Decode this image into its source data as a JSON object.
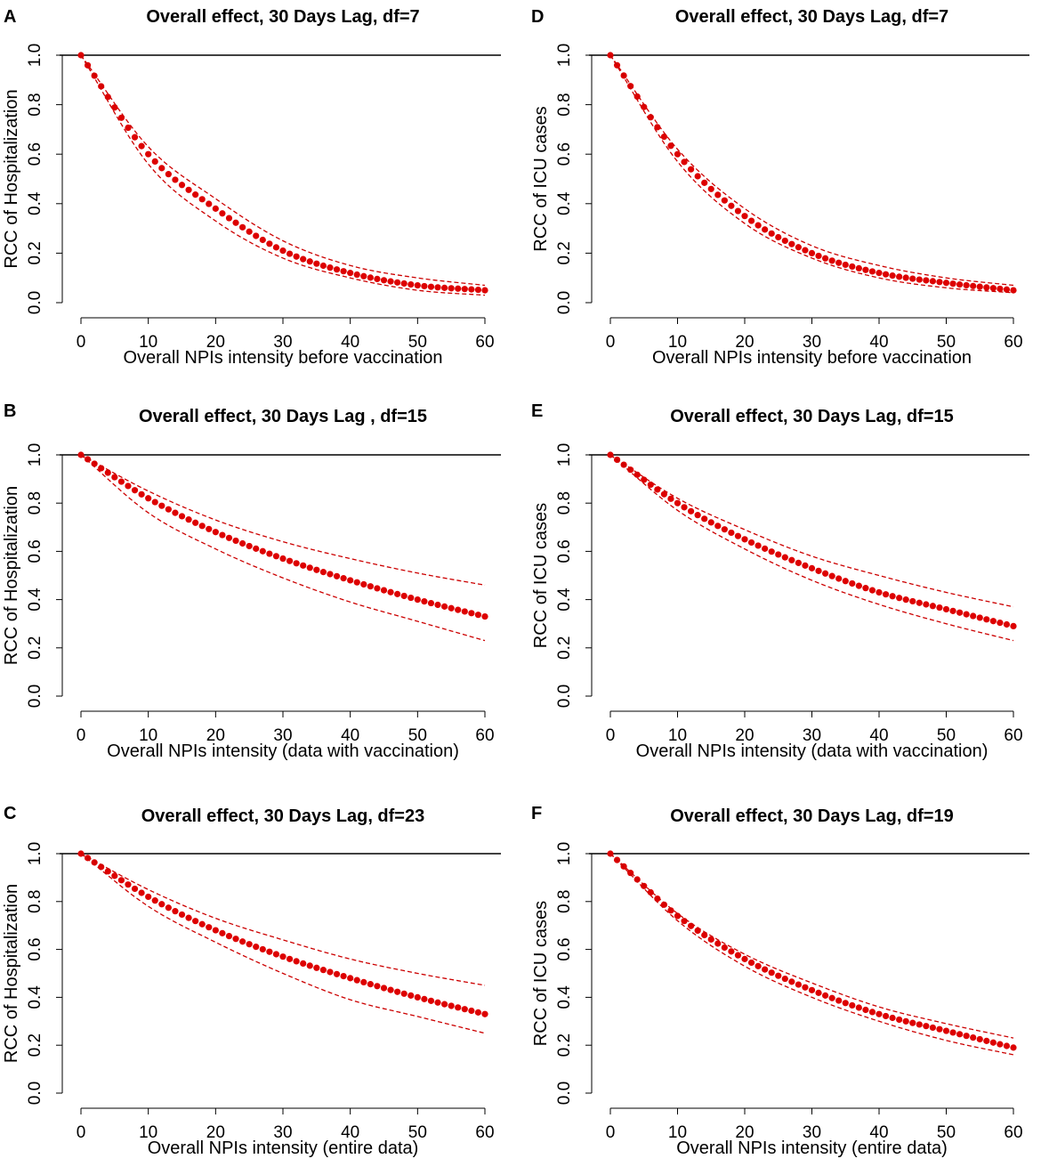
{
  "chart_data": [
    {
      "panel": "A",
      "type": "line",
      "title": "Overall effect, 30 Days Lag, df=7",
      "xlabel": "Overall NPIs intensity before vaccination",
      "ylabel": "RCC of Hospitalization",
      "xlim": [
        0,
        60
      ],
      "ylim": [
        0,
        1
      ],
      "xticks": [
        0,
        10,
        20,
        30,
        40,
        50,
        60
      ],
      "yticks": [
        0.0,
        0.2,
        0.4,
        0.6,
        0.8,
        1.0
      ],
      "ytick_labels": [
        "0.0",
        "0.2",
        "0.4",
        "0.6",
        "0.8",
        "1.0"
      ],
      "reference_line": 1.0,
      "x": [
        0,
        10,
        20,
        30,
        40,
        50,
        60
      ],
      "series": [
        {
          "name": "estimate",
          "style": "points",
          "values": [
            1.0,
            0.6,
            0.38,
            0.21,
            0.12,
            0.07,
            0.05
          ]
        },
        {
          "name": "upper",
          "style": "dashed",
          "values": [
            1.0,
            0.63,
            0.42,
            0.25,
            0.15,
            0.1,
            0.07
          ]
        },
        {
          "name": "lower",
          "style": "dashed",
          "values": [
            1.0,
            0.56,
            0.33,
            0.18,
            0.1,
            0.05,
            0.03
          ]
        }
      ]
    },
    {
      "panel": "B",
      "type": "line",
      "title": "Overall effect, 30 Days Lag , df=15",
      "xlabel": "Overall NPIs intensity (data with vaccination)",
      "ylabel": "RCC of Hospitalization",
      "xlim": [
        0,
        60
      ],
      "ylim": [
        0,
        1
      ],
      "xticks": [
        0,
        10,
        20,
        30,
        40,
        50,
        60
      ],
      "yticks": [
        0.0,
        0.2,
        0.4,
        0.6,
        0.8,
        1.0
      ],
      "ytick_labels": [
        "0.0",
        "0.2",
        "0.4",
        "0.6",
        "0.8",
        "1.0"
      ],
      "reference_line": 1.0,
      "x": [
        0,
        10,
        20,
        30,
        40,
        50,
        60
      ],
      "series": [
        {
          "name": "estimate",
          "style": "points",
          "values": [
            1.0,
            0.82,
            0.68,
            0.57,
            0.48,
            0.4,
            0.33
          ]
        },
        {
          "name": "upper",
          "style": "dashed",
          "values": [
            1.0,
            0.85,
            0.73,
            0.64,
            0.57,
            0.51,
            0.46
          ]
        },
        {
          "name": "lower",
          "style": "dashed",
          "values": [
            1.0,
            0.76,
            0.61,
            0.49,
            0.39,
            0.31,
            0.23
          ]
        }
      ]
    },
    {
      "panel": "C",
      "type": "line",
      "title": "Overall effect, 30 Days Lag, df=23",
      "xlabel": "Overall NPIs intensity (entire data)",
      "ylabel": "RCC of Hospitalization",
      "xlim": [
        0,
        60
      ],
      "ylim": [
        0,
        1
      ],
      "xticks": [
        0,
        10,
        20,
        30,
        40,
        50,
        60
      ],
      "yticks": [
        0.0,
        0.2,
        0.4,
        0.6,
        0.8,
        1.0
      ],
      "ytick_labels": [
        "0.0",
        "0.2",
        "0.4",
        "0.6",
        "0.8",
        "1.0"
      ],
      "reference_line": 1.0,
      "x": [
        0,
        10,
        20,
        30,
        40,
        50,
        60
      ],
      "series": [
        {
          "name": "estimate",
          "style": "points",
          "values": [
            1.0,
            0.82,
            0.68,
            0.57,
            0.48,
            0.4,
            0.33
          ]
        },
        {
          "name": "upper",
          "style": "dashed",
          "values": [
            1.0,
            0.85,
            0.73,
            0.64,
            0.56,
            0.5,
            0.45
          ]
        },
        {
          "name": "lower",
          "style": "dashed",
          "values": [
            1.0,
            0.78,
            0.63,
            0.5,
            0.39,
            0.32,
            0.25
          ]
        }
      ]
    },
    {
      "panel": "D",
      "type": "line",
      "title": "Overall effect, 30 Days Lag, df=7",
      "xlabel": "Overall NPIs intensity before vaccination",
      "ylabel": "RCC of ICU cases",
      "xlim": [
        0,
        60
      ],
      "ylim": [
        0,
        1
      ],
      "xticks": [
        0,
        10,
        20,
        30,
        40,
        50,
        60
      ],
      "yticks": [
        0.0,
        0.2,
        0.4,
        0.6,
        0.8,
        1.0
      ],
      "ytick_labels": [
        "0.0",
        "0.2",
        "0.4",
        "0.6",
        "0.8",
        "1.0"
      ],
      "reference_line": 1.0,
      "x": [
        0,
        10,
        20,
        30,
        40,
        50,
        60
      ],
      "series": [
        {
          "name": "estimate",
          "style": "points",
          "values": [
            1.0,
            0.6,
            0.35,
            0.2,
            0.12,
            0.08,
            0.05
          ]
        },
        {
          "name": "upper",
          "style": "dashed",
          "values": [
            1.0,
            0.62,
            0.38,
            0.23,
            0.15,
            0.1,
            0.07
          ]
        },
        {
          "name": "lower",
          "style": "dashed",
          "values": [
            1.0,
            0.57,
            0.32,
            0.18,
            0.1,
            0.06,
            0.04
          ]
        }
      ]
    },
    {
      "panel": "E",
      "type": "line",
      "title": "Overall effect, 30 Days Lag, df=15",
      "xlabel": "Overall NPIs intensity (data with vaccination)",
      "ylabel": "RCC of ICU cases",
      "xlim": [
        0,
        60
      ],
      "ylim": [
        0,
        1
      ],
      "xticks": [
        0,
        10,
        20,
        30,
        40,
        50,
        60
      ],
      "yticks": [
        0.0,
        0.2,
        0.4,
        0.6,
        0.8,
        1.0
      ],
      "ytick_labels": [
        "0.0",
        "0.2",
        "0.4",
        "0.6",
        "0.8",
        "1.0"
      ],
      "reference_line": 1.0,
      "x": [
        0,
        10,
        20,
        30,
        40,
        50,
        60
      ],
      "series": [
        {
          "name": "estimate",
          "style": "points",
          "values": [
            1.0,
            0.8,
            0.65,
            0.53,
            0.43,
            0.36,
            0.29
          ]
        },
        {
          "name": "upper",
          "style": "dashed",
          "values": [
            1.0,
            0.82,
            0.69,
            0.58,
            0.5,
            0.43,
            0.37
          ]
        },
        {
          "name": "lower",
          "style": "dashed",
          "values": [
            1.0,
            0.77,
            0.61,
            0.48,
            0.38,
            0.3,
            0.23
          ]
        }
      ]
    },
    {
      "panel": "F",
      "type": "line",
      "title": "Overall effect, 30 Days Lag, df=19",
      "xlabel": "Overall NPIs intensity (entire data)",
      "ylabel": "RCC of ICU cases",
      "xlim": [
        0,
        60
      ],
      "ylim": [
        0,
        1
      ],
      "xticks": [
        0,
        10,
        20,
        30,
        40,
        50,
        60
      ],
      "yticks": [
        0.0,
        0.2,
        0.4,
        0.6,
        0.8,
        1.0
      ],
      "ytick_labels": [
        "0.0",
        "0.2",
        "0.4",
        "0.6",
        "0.8",
        "1.0"
      ],
      "reference_line": 1.0,
      "x": [
        0,
        10,
        20,
        30,
        40,
        50,
        60
      ],
      "series": [
        {
          "name": "estimate",
          "style": "points",
          "values": [
            1.0,
            0.74,
            0.56,
            0.43,
            0.33,
            0.26,
            0.19
          ]
        },
        {
          "name": "upper",
          "style": "dashed",
          "values": [
            1.0,
            0.75,
            0.58,
            0.46,
            0.36,
            0.29,
            0.23
          ]
        },
        {
          "name": "lower",
          "style": "dashed",
          "values": [
            1.0,
            0.72,
            0.53,
            0.4,
            0.3,
            0.22,
            0.16
          ]
        }
      ]
    }
  ]
}
